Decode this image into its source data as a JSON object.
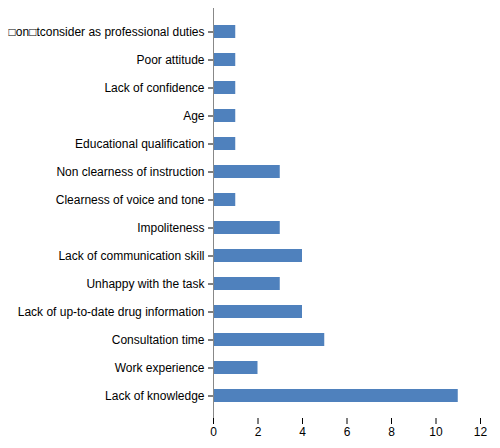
{
  "chart_data": {
    "type": "bar",
    "orientation": "horizontal",
    "categories": [
      "□on□tconsider as professional duties",
      "Poor attitude",
      "Lack of confidence",
      "Age",
      "Educational qualification",
      "Non clearness of instruction",
      "Clearness of voice and tone",
      "Impoliteness",
      "Lack of communication skill",
      "Unhappy with the task",
      "Lack of up-to-date drug information",
      "Consultation time",
      "Work experience",
      "Lack of knowledge"
    ],
    "values": [
      1,
      1,
      1,
      1,
      1,
      3,
      1,
      3,
      4,
      3,
      4,
      5,
      2,
      11
    ],
    "color": "#4f81bd",
    "xlim": [
      0,
      12
    ],
    "xticks": [
      0,
      2,
      4,
      6,
      8,
      10,
      12
    ],
    "grid": false
  }
}
